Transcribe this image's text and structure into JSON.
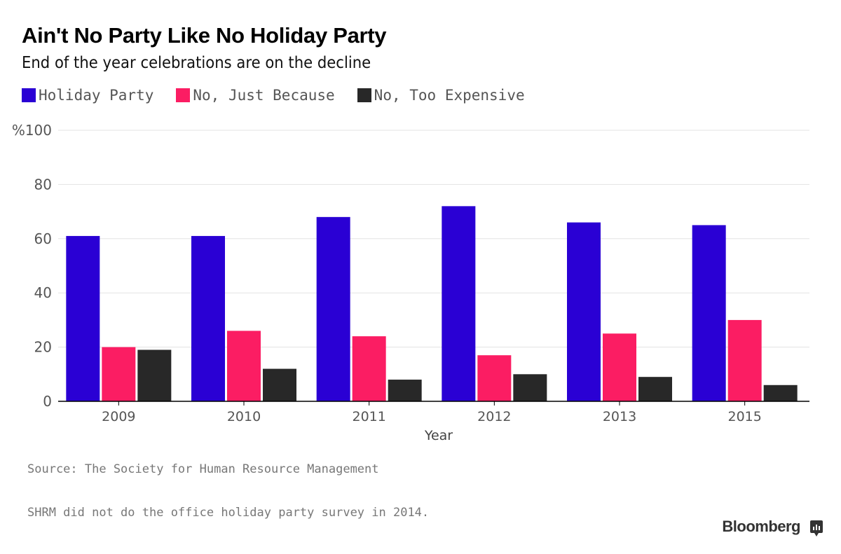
{
  "header": {
    "title": "Ain't No Party Like No Holiday Party",
    "subtitle": "End of the year celebrations are on the decline"
  },
  "footer": {
    "source": "Source: The Society for Human Resource Management",
    "note": "SHRM did not do the office holiday party survey in 2014.",
    "brand": "Bloomberg",
    "brand_icon": "bloomberg-chart-icon"
  },
  "chart_data": {
    "type": "bar",
    "title": "Ain't No Party Like No Holiday Party",
    "subtitle": "End of the year celebrations are on the decline",
    "xlabel": "Year",
    "ylabel": "",
    "ylim": [
      0,
      100
    ],
    "yticks": [
      0,
      20,
      40,
      60,
      80,
      100
    ],
    "ytick_labels": [
      "0",
      "20",
      "40",
      "60",
      "80",
      "%100"
    ],
    "grid": true,
    "legend_position": "top-left",
    "categories": [
      "2009",
      "2010",
      "2011",
      "2012",
      "2013",
      "2015"
    ],
    "series": [
      {
        "name": "Holiday Party",
        "color": "#2a00d4",
        "values": [
          61,
          61,
          68,
          72,
          66,
          65
        ]
      },
      {
        "name": "No, Just Because",
        "color": "#fb1d63",
        "values": [
          20,
          26,
          24,
          17,
          25,
          30
        ]
      },
      {
        "name": "No, Too Expensive",
        "color": "#282828",
        "values": [
          19,
          12,
          8,
          10,
          9,
          6
        ]
      }
    ]
  }
}
